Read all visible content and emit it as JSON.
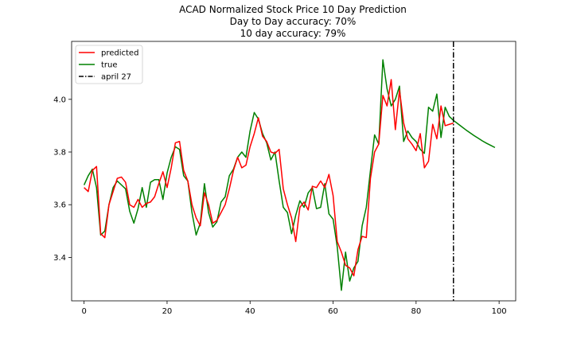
{
  "chart_data": {
    "type": "line",
    "title_lines": [
      "ACAD Normalized Stock Price 10 Day Prediction",
      "Day to Day accuracy: 70%",
      "10 day accuracy: 79%"
    ],
    "xlabel": "",
    "ylabel": "",
    "xlim": [
      -3,
      104
    ],
    "ylim": [
      3.235,
      4.22
    ],
    "x_ticks": [
      0,
      20,
      40,
      60,
      80,
      100
    ],
    "y_ticks": [
      3.4,
      3.6,
      3.8,
      4.0
    ],
    "y_tick_labels": [
      "3.4",
      "3.6",
      "3.8",
      "4.0"
    ],
    "grid": false,
    "legend_position": "top-left",
    "series": [
      {
        "name": "predicted",
        "color": "#ff0000",
        "x": [
          0,
          1,
          2,
          3,
          4,
          5,
          6,
          7,
          8,
          9,
          10,
          11,
          12,
          13,
          14,
          15,
          16,
          17,
          18,
          19,
          20,
          21,
          22,
          23,
          24,
          25,
          26,
          27,
          28,
          29,
          30,
          31,
          32,
          33,
          34,
          35,
          36,
          37,
          38,
          39,
          40,
          41,
          42,
          43,
          44,
          45,
          46,
          47,
          48,
          49,
          50,
          51,
          52,
          53,
          54,
          55,
          56,
          57,
          58,
          59,
          60,
          61,
          62,
          63,
          64,
          65,
          66,
          67,
          68,
          69,
          70,
          71,
          72,
          73,
          74,
          75,
          76,
          77,
          78,
          79,
          80,
          81,
          82,
          83,
          84,
          85,
          86,
          87,
          88,
          89
        ],
        "values": [
          3.665,
          3.65,
          3.73,
          3.745,
          3.49,
          3.475,
          3.6,
          3.65,
          3.7,
          3.705,
          3.685,
          3.6,
          3.59,
          3.62,
          3.59,
          3.605,
          3.61,
          3.63,
          3.68,
          3.725,
          3.665,
          3.74,
          3.835,
          3.84,
          3.73,
          3.69,
          3.6,
          3.55,
          3.52,
          3.645,
          3.6,
          3.53,
          3.54,
          3.57,
          3.6,
          3.66,
          3.73,
          3.78,
          3.74,
          3.75,
          3.82,
          3.87,
          3.93,
          3.86,
          3.84,
          3.8,
          3.795,
          3.81,
          3.66,
          3.6,
          3.55,
          3.46,
          3.59,
          3.61,
          3.58,
          3.67,
          3.665,
          3.69,
          3.665,
          3.715,
          3.635,
          3.46,
          3.42,
          3.37,
          3.36,
          3.33,
          3.43,
          3.48,
          3.475,
          3.7,
          3.8,
          3.83,
          4.015,
          3.975,
          4.075,
          3.885,
          4.035,
          3.91,
          3.85,
          3.83,
          3.805,
          3.87,
          3.74,
          3.765,
          3.905,
          3.85,
          3.975,
          3.9,
          3.905,
          3.91
        ]
      },
      {
        "name": "true",
        "color": "#008000",
        "x": [
          0,
          1,
          2,
          3,
          4,
          5,
          6,
          7,
          8,
          9,
          10,
          11,
          12,
          13,
          14,
          15,
          16,
          17,
          18,
          19,
          20,
          21,
          22,
          23,
          24,
          25,
          26,
          27,
          28,
          29,
          30,
          31,
          32,
          33,
          34,
          35,
          36,
          37,
          38,
          39,
          40,
          41,
          42,
          43,
          44,
          45,
          46,
          47,
          48,
          49,
          50,
          51,
          52,
          53,
          54,
          55,
          56,
          57,
          58,
          59,
          60,
          61,
          62,
          63,
          64,
          65,
          66,
          67,
          68,
          69,
          70,
          71,
          72,
          73,
          74,
          75,
          76,
          77,
          78,
          79,
          80,
          81,
          82,
          83,
          84,
          85,
          86,
          87,
          88,
          89,
          90,
          91,
          92,
          93,
          94,
          95,
          96,
          97,
          98,
          99
        ],
        "values": [
          3.675,
          3.71,
          3.735,
          3.665,
          3.485,
          3.5,
          3.6,
          3.665,
          3.69,
          3.675,
          3.66,
          3.575,
          3.53,
          3.585,
          3.665,
          3.59,
          3.685,
          3.695,
          3.695,
          3.62,
          3.72,
          3.78,
          3.82,
          3.81,
          3.71,
          3.69,
          3.57,
          3.485,
          3.53,
          3.68,
          3.57,
          3.515,
          3.535,
          3.61,
          3.63,
          3.71,
          3.735,
          3.78,
          3.8,
          3.78,
          3.88,
          3.95,
          3.925,
          3.87,
          3.835,
          3.77,
          3.8,
          3.69,
          3.59,
          3.57,
          3.49,
          3.56,
          3.615,
          3.59,
          3.645,
          3.665,
          3.585,
          3.59,
          3.68,
          3.565,
          3.545,
          3.44,
          3.275,
          3.42,
          3.31,
          3.36,
          3.385,
          3.52,
          3.59,
          3.73,
          3.865,
          3.83,
          4.15,
          4.04,
          3.975,
          4.0,
          4.05,
          3.84,
          3.88,
          3.855,
          3.84,
          3.81,
          3.795,
          3.97,
          3.955,
          4.02,
          3.855,
          3.97,
          3.935,
          3.92,
          3.908,
          3.896,
          3.884,
          3.873,
          3.862,
          3.852,
          3.842,
          3.833,
          3.825,
          3.817
        ]
      }
    ],
    "vline": {
      "label": "april 27",
      "x": 89,
      "color": "#000000"
    }
  }
}
